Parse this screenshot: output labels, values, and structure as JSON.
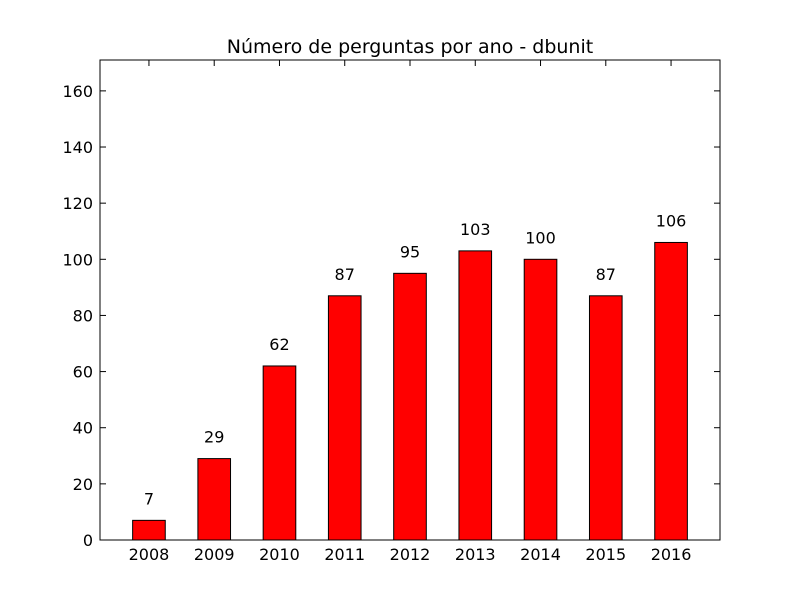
{
  "chart_data": {
    "type": "bar",
    "title": "Número de perguntas por ano - dbunit",
    "xlabel": "",
    "ylabel": "",
    "categories": [
      "2008",
      "2009",
      "2010",
      "2011",
      "2012",
      "2013",
      "2014",
      "2015",
      "2016"
    ],
    "values": [
      7,
      29,
      62,
      87,
      95,
      103,
      100,
      87,
      106
    ],
    "data_labels": [
      "7",
      "29",
      "62",
      "87",
      "95",
      "103",
      "100",
      "87",
      "106"
    ],
    "ylim": [
      0,
      171
    ],
    "yticks": [
      0,
      20,
      40,
      60,
      80,
      100,
      120,
      140,
      160
    ],
    "ytick_labels": [
      "0",
      "20",
      "40",
      "60",
      "80",
      "100",
      "120",
      "140",
      "160"
    ],
    "bar_color": "#ff0000",
    "edge_color": "#000000",
    "grid": false,
    "legend": "none"
  }
}
